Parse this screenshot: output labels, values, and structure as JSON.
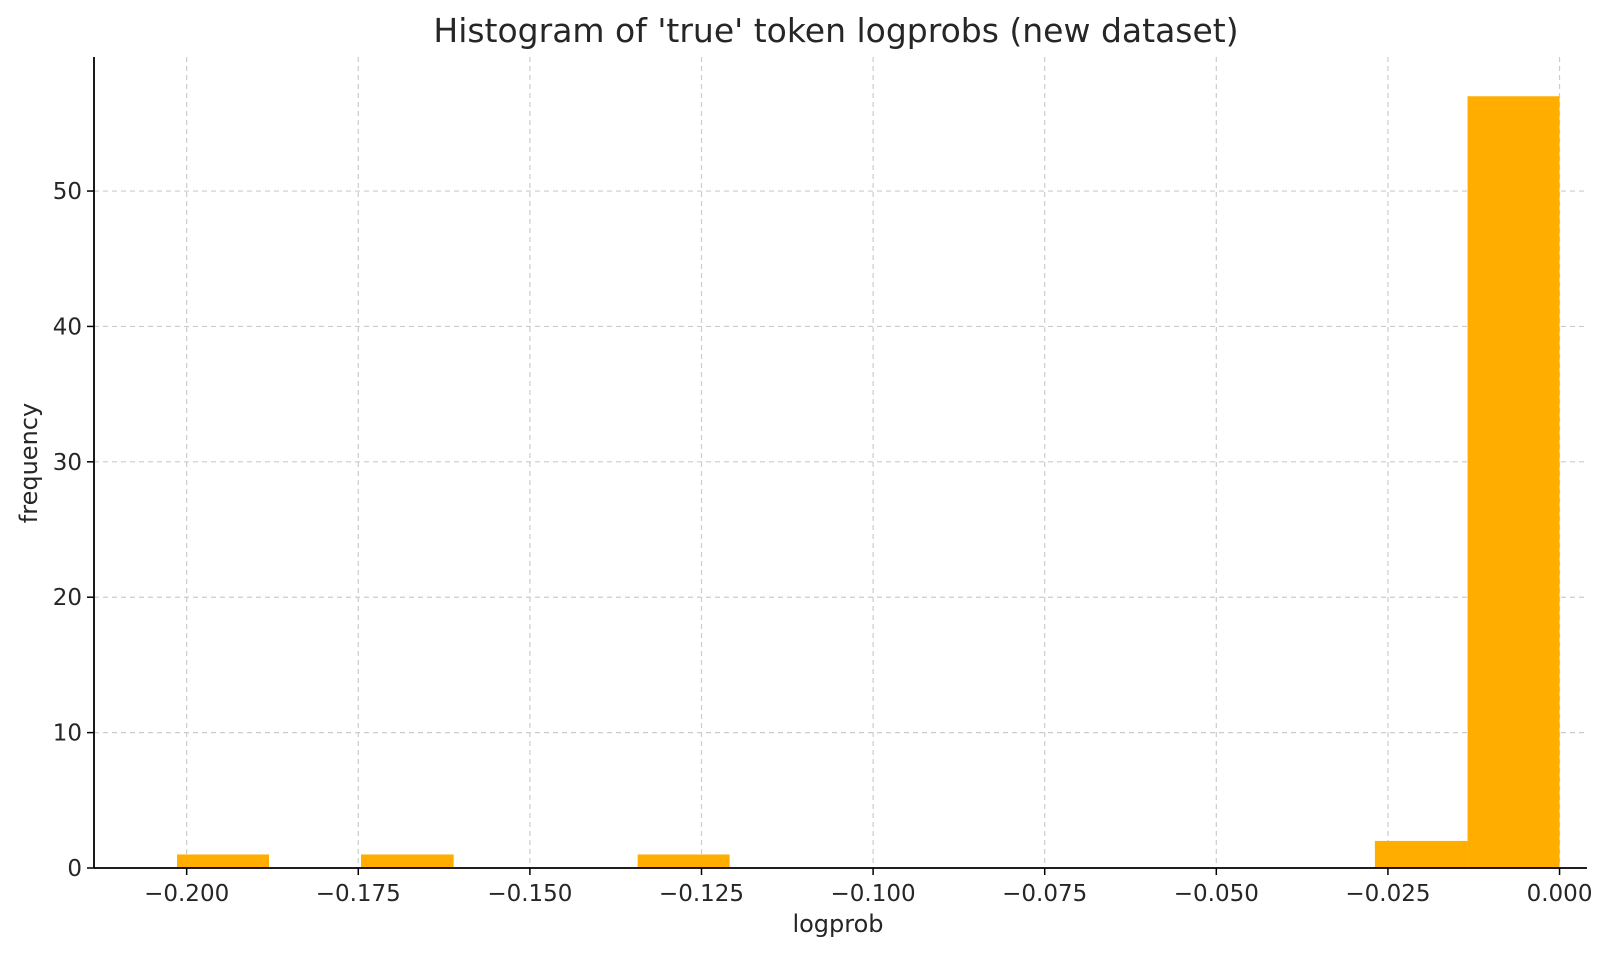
{
  "chart_data": {
    "type": "bar",
    "title": "Histogram of 'true' token logprobs (new dataset)",
    "xlabel": "logprob",
    "ylabel": "frequency",
    "xlim": [
      -0.2135,
      0.004
    ],
    "ylim": [
      0,
      59.9
    ],
    "x_ticks": [
      -0.2,
      -0.175,
      -0.15,
      -0.125,
      -0.1,
      -0.075,
      -0.05,
      -0.025,
      0.0
    ],
    "x_tick_labels": [
      "−0.200",
      "−0.175",
      "−0.150",
      "−0.125",
      "−0.100",
      "−0.075",
      "−0.050",
      "−0.025",
      "0.000"
    ],
    "y_ticks": [
      0,
      10,
      20,
      30,
      40,
      50
    ],
    "y_tick_labels": [
      "0",
      "10",
      "20",
      "30",
      "40",
      "50"
    ],
    "grid": true,
    "bar_color": "#FFAE00",
    "bins": [
      {
        "x0": -0.2014,
        "x1": -0.188,
        "count": 1
      },
      {
        "x0": -0.188,
        "x1": -0.1746,
        "count": 0
      },
      {
        "x0": -0.1746,
        "x1": -0.1611,
        "count": 1
      },
      {
        "x0": -0.1611,
        "x1": -0.1477,
        "count": 0
      },
      {
        "x0": -0.1477,
        "x1": -0.1343,
        "count": 0
      },
      {
        "x0": -0.1343,
        "x1": -0.1209,
        "count": 1
      },
      {
        "x0": -0.1209,
        "x1": -0.1074,
        "count": 0
      },
      {
        "x0": -0.1074,
        "x1": -0.094,
        "count": 0
      },
      {
        "x0": -0.094,
        "x1": -0.0806,
        "count": 0
      },
      {
        "x0": -0.0806,
        "x1": -0.0671,
        "count": 0
      },
      {
        "x0": -0.0671,
        "x1": -0.0537,
        "count": 0
      },
      {
        "x0": -0.0537,
        "x1": -0.0403,
        "count": 0
      },
      {
        "x0": -0.0403,
        "x1": -0.0269,
        "count": 0
      },
      {
        "x0": -0.0269,
        "x1": -0.0134,
        "count": 2
      },
      {
        "x0": -0.0134,
        "x1": 0.0,
        "count": 57
      }
    ]
  }
}
